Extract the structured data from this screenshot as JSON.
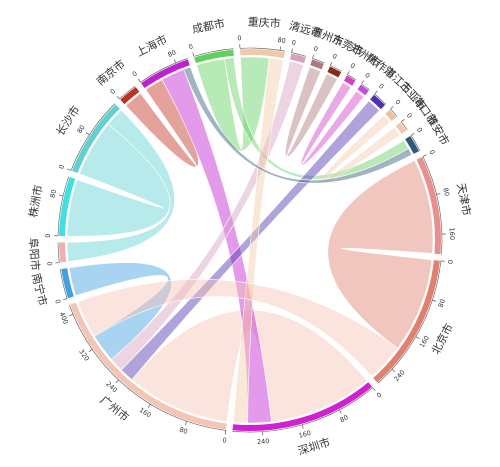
{
  "chart_data": {
    "type": "chord",
    "nodes": [
      {
        "name": "重庆市",
        "color": "#f2c9a8",
        "ticks": [
          0,
          80
        ]
      },
      {
        "name": "清远市",
        "color": "#d8a0c0",
        "ticks": [
          0
        ]
      },
      {
        "name": "惠州市",
        "color": "#b07878",
        "ticks": [
          0
        ]
      },
      {
        "name": "东莞市",
        "color": "#8b2a1a",
        "ticks": [
          0
        ]
      },
      {
        "name": "郑州市",
        "color": "#d040c8",
        "ticks": [
          0
        ]
      },
      {
        "name": "焦作市",
        "color": "#c050d8",
        "ticks": [
          0
        ]
      },
      {
        "name": "湛江市",
        "color": "#5030b0",
        "ticks": [
          0
        ]
      },
      {
        "name": "三亚市",
        "color": "#f0c0a0",
        "ticks": [
          0
        ]
      },
      {
        "name": "海口市",
        "color": "#f4c8b0",
        "ticks": [
          0
        ]
      },
      {
        "name": "雅安市",
        "color": "#305878",
        "ticks": [
          0
        ]
      },
      {
        "name": "天津市",
        "color": "#e89090",
        "ticks": [
          0,
          80,
          160
        ]
      },
      {
        "name": "北京市",
        "color": "#e08070",
        "ticks": [
          0,
          80,
          160,
          240
        ]
      },
      {
        "name": "深圳市",
        "color": "#d020d0",
        "ticks": [
          0,
          80,
          160,
          240
        ]
      },
      {
        "name": "广州市",
        "color": "#f4c4b4",
        "ticks": [
          0,
          80,
          160,
          240,
          320,
          400
        ]
      },
      {
        "name": "南宁市",
        "color": "#40a0e0",
        "ticks": [
          0
        ]
      },
      {
        "name": "阜阳市",
        "color": "#f0b0b0",
        "ticks": [
          0
        ]
      },
      {
        "name": "株洲市",
        "color": "#40e0e0",
        "ticks": [
          0,
          80
        ]
      },
      {
        "name": "长沙市",
        "color": "#60d0d0",
        "ticks": [
          0,
          80
        ]
      },
      {
        "name": "南京市",
        "color": "#c03020",
        "ticks": [
          0
        ]
      },
      {
        "name": "上海市",
        "color": "#c020d0",
        "ticks": [
          0,
          80
        ]
      },
      {
        "name": "成都市",
        "color": "#60d060",
        "ticks": [
          0
        ]
      }
    ],
    "links": [
      {
        "source": 13,
        "target": 12,
        "value": 220
      },
      {
        "source": 11,
        "target": 10,
        "value": 200
      },
      {
        "source": 17,
        "target": 16,
        "value": 120
      },
      {
        "source": 17,
        "target": 15,
        "value": 40
      },
      {
        "source": 18,
        "target": 19,
        "value": 40
      },
      {
        "source": 19,
        "target": 12,
        "value": 50
      },
      {
        "source": 20,
        "target": 0,
        "value": 60
      },
      {
        "source": 20,
        "target": 9,
        "value": 20
      },
      {
        "source": 6,
        "target": 13,
        "value": 30
      },
      {
        "source": 1,
        "target": 13,
        "value": 30
      },
      {
        "source": 2,
        "target": 3,
        "value": 25
      },
      {
        "source": 4,
        "target": 5,
        "value": 20
      },
      {
        "source": 14,
        "target": 13,
        "value": 60
      },
      {
        "source": 8,
        "target": 7,
        "value": 20
      },
      {
        "source": 0,
        "target": 12,
        "value": 30
      },
      {
        "source": 9,
        "target": 19,
        "value": 15
      },
      {
        "source": 13,
        "target": 11,
        "value": 80
      }
    ]
  }
}
